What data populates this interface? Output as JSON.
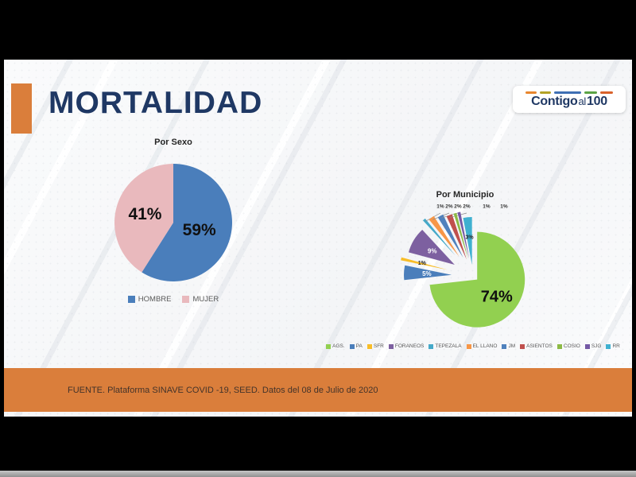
{
  "title": "MORTALIDAD",
  "logo": {
    "bold1": "Contigo",
    "mid": "al",
    "bold2": "100",
    "dash_colors": [
      "#E8862E",
      "#B3A226",
      "#3E6FB4",
      "#5BA345",
      "#D9622B"
    ]
  },
  "colors": {
    "accent_orange": "#DA7E3B",
    "title_navy": "#1F3864",
    "footer_band": "#DA7E3B"
  },
  "chart_data": [
    {
      "type": "pie",
      "title": "Por Sexo",
      "categories": [
        "HOMBRE",
        "MUJER"
      ],
      "values": [
        59,
        41
      ],
      "labels": [
        "59%",
        "41%"
      ],
      "colors": [
        "#4A7EBB",
        "#E9B9BD"
      ],
      "legend_position": "bottom"
    },
    {
      "type": "pie",
      "title": "Por Municipio",
      "exploded": true,
      "categories": [
        "AGS.",
        "PA",
        "SFR",
        "FORANEOS",
        "TEPEZALA",
        "EL LLANO",
        "JM",
        "ASIENTOS",
        "COSIO",
        "SJG",
        "RR"
      ],
      "values": [
        74,
        5,
        1,
        9,
        1,
        2,
        2,
        2,
        1,
        1,
        3
      ],
      "labels": [
        "74%",
        "5%",
        "1%",
        "9%",
        "1%",
        "2%",
        "2%",
        "2%",
        "1%",
        "1%",
        "3%"
      ],
      "colors": [
        "#92D050",
        "#4A7EBB",
        "#F8BD28",
        "#7D60A0",
        "#45A9C9",
        "#F79646",
        "#4F81BD",
        "#C0504D",
        "#8CBA45",
        "#7459A5",
        "#3FB0D0"
      ],
      "legend_position": "bottom"
    }
  ],
  "footer": {
    "source": "FUENTE. Plataforma SINAVE COVID -19, SEED. Datos del 08 de Julio de 2020"
  }
}
